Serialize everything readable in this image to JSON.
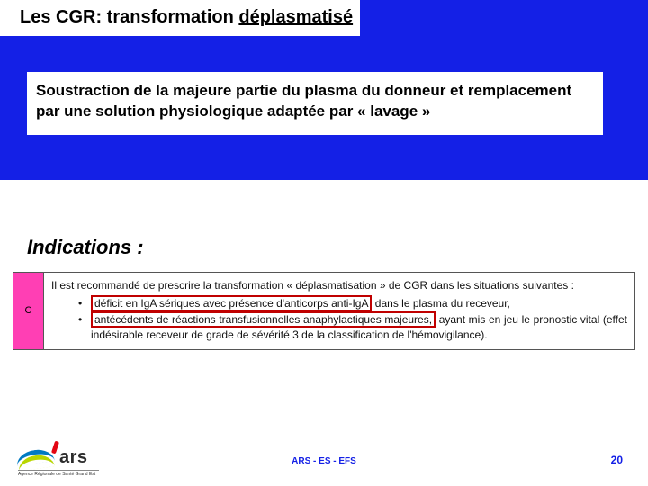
{
  "title": {
    "prefix": "Les CGR: transformation ",
    "underlined": "déplasmatisé"
  },
  "description": "Soustraction de la majeure partie du plasma du donneur et remplacement par une solution physiologique adaptée par « lavage »",
  "indications_label": "Indications :",
  "recommendation": {
    "grade": "C",
    "intro": "Il est recommandé de prescrire la transformation « déplasmatisation » de CGR dans les situations suivantes :",
    "bullet1_hl": "déficit en IgA sériques avec présence d'anticorps anti-IgA",
    "bullet1_tail": " dans le plasma du receveur,",
    "bullet2_hl": "antécédents de réactions transfusionnelles anaphylactiques majeures,",
    "bullet2_tail": " ayant mis en jeu le pronostic vital (effet indésirable receveur de grade de sévérité 3 de la classification de l'hémovigilance)."
  },
  "logo": {
    "text": "ars",
    "caption": "Agence Régionale de Santé   Grand Est"
  },
  "footer_center": "ARS -  ES - EFS",
  "page_number": "20",
  "colors": {
    "primary_blue": "#1420e6",
    "pink": "#ff3fb4",
    "red_box": "#c00000"
  }
}
